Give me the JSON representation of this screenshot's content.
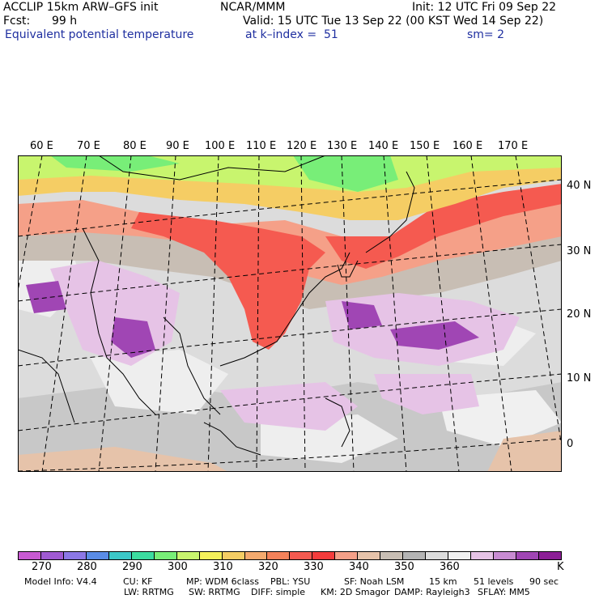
{
  "header": {
    "model": "ACCLIP 15km ARW–GFS init",
    "org": "NCAR/MMM",
    "init": "Init: 12 UTC Fri 09 Sep 22",
    "fcst_label": "Fcst:",
    "fcst_value": "99 h",
    "valid": "Valid: 15 UTC Tue 13 Sep 22 (00 KST Wed 14 Sep 22)",
    "field": "Equivalent potential temperature",
    "level": "at k–index =  51",
    "smooth": "sm= 2"
  },
  "map": {
    "lon_labels": [
      "60 E",
      "70 E",
      "80 E",
      "90 E",
      "100 E",
      "110 E",
      "120 E",
      "130 E",
      "140 E",
      "150 E",
      "160 E",
      "170 E"
    ],
    "lat_labels": [
      "40 N",
      "30 N",
      "20 N",
      "10 N",
      "0"
    ]
  },
  "colorbar": {
    "colors": [
      "#c85ad2",
      "#a05ad2",
      "#8c78e6",
      "#5a8ce6",
      "#3cc8c8",
      "#3cdca0",
      "#78ee78",
      "#c8f56e",
      "#f5f05a",
      "#f5cd64",
      "#f5aa6e",
      "#f5825a",
      "#f55a50",
      "#f53c3c",
      "#f5a088",
      "#e6c3aa",
      "#c8beb4",
      "#b4b4b4",
      "#dcdcdc",
      "#f0f0f0",
      "#e6c3e6",
      "#c88cd2",
      "#a046b4",
      "#8c1e96"
    ],
    "tick_labels": [
      "270",
      "280",
      "290",
      "300",
      "310",
      "320",
      "330",
      "340",
      "350",
      "360"
    ],
    "unit": "K"
  },
  "footer": {
    "line1": [
      "Model Info: V4.4",
      "CU: KF",
      "MP: WDM 6class",
      "PBL: YSU",
      "SF: Noah LSM",
      "15 km",
      "51 levels",
      "90 sec"
    ],
    "line2": [
      "LW: RRTMG",
      "SW: RRTMG",
      "DIFF: simple",
      "KM: 2D Smagor",
      "DAMP: Rayleigh3",
      "SFLAY: MM5"
    ]
  }
}
